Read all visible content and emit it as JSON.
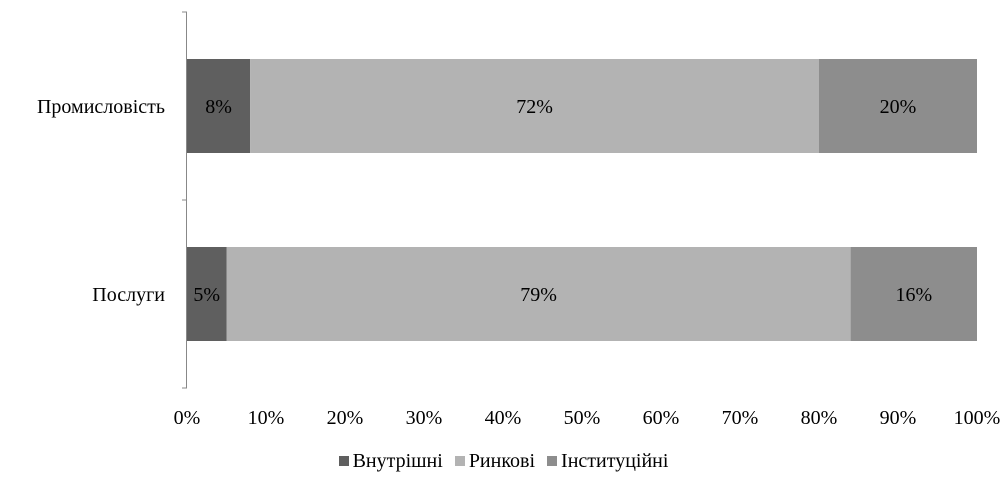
{
  "chart_data": {
    "type": "bar",
    "orientation": "horizontal",
    "stacked": true,
    "normalized": true,
    "categories": [
      "Промисловість",
      "Послуги"
    ],
    "series": [
      {
        "name": "Внутрішні",
        "values": [
          8,
          5
        ],
        "labels": [
          "8%",
          "5%"
        ],
        "color": "#5f5f5f"
      },
      {
        "name": "Ринкові",
        "values": [
          72,
          79
        ],
        "labels": [
          "72%",
          "79%"
        ],
        "color": "#b3b3b3"
      },
      {
        "name": "Інституційні",
        "values": [
          20,
          16
        ],
        "labels": [
          "20%",
          "16%"
        ],
        "color": "#8d8d8d"
      }
    ],
    "x_ticks": [
      "0%",
      "10%",
      "20%",
      "30%",
      "40%",
      "50%",
      "60%",
      "70%",
      "80%",
      "90%",
      "100%"
    ],
    "xlim": [
      0,
      100
    ],
    "grid": false,
    "legend_position": "bottom"
  }
}
